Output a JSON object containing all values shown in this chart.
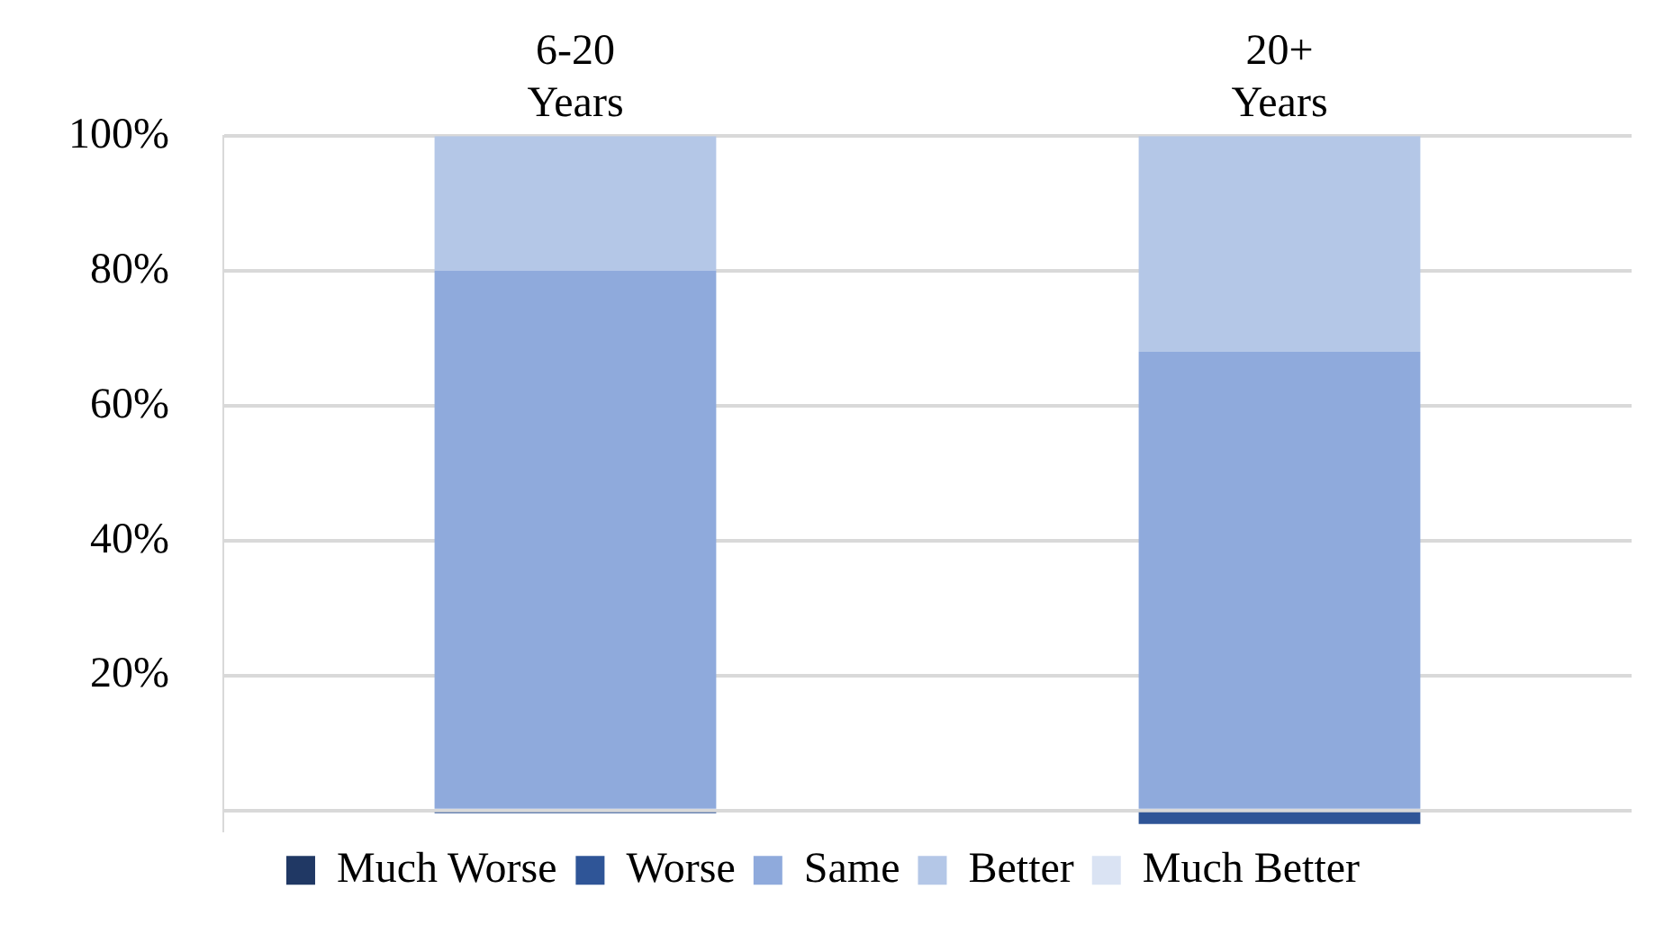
{
  "chart_data": {
    "type": "bar",
    "stacked": true,
    "categories": [
      "6-20 Years",
      "20+ Years"
    ],
    "series": [
      {
        "name": "Much Worse",
        "color": "#203864",
        "values": [
          0,
          0
        ]
      },
      {
        "name": "Worse",
        "color": "#2f5597",
        "values": [
          -0.4,
          -2
        ]
      },
      {
        "name": "Same",
        "color": "#8faadc",
        "values": [
          80,
          68
        ]
      },
      {
        "name": "Better",
        "color": "#b4c7e7",
        "values": [
          20,
          32
        ]
      },
      {
        "name": "Much Better",
        "color": "#dae3f3",
        "values": [
          0,
          0
        ]
      }
    ],
    "ylim": [
      -3,
      100
    ],
    "yticks": [
      {
        "value": 0,
        "label": null
      },
      {
        "value": 20,
        "label": "20%"
      },
      {
        "value": 40,
        "label": "40%"
      },
      {
        "value": 60,
        "label": "60%"
      },
      {
        "value": 80,
        "label": "80%"
      },
      {
        "value": 100,
        "label": "100%"
      }
    ],
    "grid": "y",
    "legend": "bottom"
  }
}
